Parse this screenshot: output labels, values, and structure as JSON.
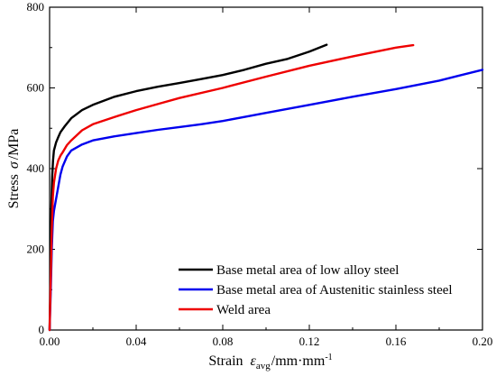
{
  "chart_data": {
    "type": "line",
    "title": "",
    "xlabel": {
      "prefix": "Strain",
      "symbol": "ε",
      "subscript": "avg",
      "unit": "/mm·mm",
      "unit_sup": "-1"
    },
    "ylabel": {
      "prefix": "Stress",
      "symbol": "σ",
      "unit": "/MPa"
    },
    "xlim": [
      0.0,
      0.2
    ],
    "ylim": [
      0,
      800
    ],
    "xticks": [
      0.0,
      0.04,
      0.08,
      0.12,
      0.16,
      0.2
    ],
    "xtick_labels": [
      "0.00",
      "0.04",
      "0.08",
      "0.12",
      "0.16",
      "0.20"
    ],
    "yticks": [
      0,
      200,
      400,
      600,
      800
    ],
    "ytick_labels": [
      "0",
      "200",
      "400",
      "600",
      "800"
    ],
    "grid": false,
    "legend_position": "bottom-right",
    "series": [
      {
        "name": "Base metal area of low alloy steel",
        "color": "#000000",
        "x": [
          0.0,
          0.0004,
          0.0008,
          0.0012,
          0.0016,
          0.002,
          0.003,
          0.004,
          0.005,
          0.007,
          0.01,
          0.015,
          0.02,
          0.03,
          0.04,
          0.05,
          0.06,
          0.07,
          0.08,
          0.09,
          0.1,
          0.11,
          0.12,
          0.128
        ],
        "y": [
          0,
          150,
          300,
          380,
          420,
          445,
          465,
          478,
          490,
          505,
          525,
          545,
          558,
          578,
          592,
          603,
          612,
          622,
          632,
          645,
          660,
          672,
          690,
          707
        ]
      },
      {
        "name": "Base metal area of Austenitic stainless steel",
        "color": "#0000ee",
        "x": [
          0.0,
          0.0005,
          0.001,
          0.0015,
          0.002,
          0.003,
          0.004,
          0.005,
          0.006,
          0.008,
          0.01,
          0.015,
          0.02,
          0.03,
          0.04,
          0.05,
          0.06,
          0.07,
          0.08,
          0.1,
          0.12,
          0.14,
          0.16,
          0.18,
          0.2
        ],
        "y": [
          0,
          90,
          200,
          270,
          295,
          325,
          355,
          385,
          405,
          430,
          445,
          460,
          470,
          480,
          488,
          496,
          503,
          510,
          518,
          538,
          558,
          578,
          597,
          618,
          645
        ]
      },
      {
        "name": "Weld area",
        "color": "#ee0000",
        "x": [
          0.0,
          0.0005,
          0.001,
          0.0015,
          0.002,
          0.003,
          0.004,
          0.005,
          0.006,
          0.008,
          0.01,
          0.015,
          0.02,
          0.03,
          0.04,
          0.05,
          0.06,
          0.08,
          0.1,
          0.12,
          0.14,
          0.16,
          0.168
        ],
        "y": [
          0,
          120,
          250,
          330,
          365,
          400,
          420,
          432,
          440,
          458,
          470,
          495,
          510,
          528,
          545,
          560,
          575,
          600,
          628,
          655,
          678,
          700,
          706
        ]
      }
    ]
  }
}
